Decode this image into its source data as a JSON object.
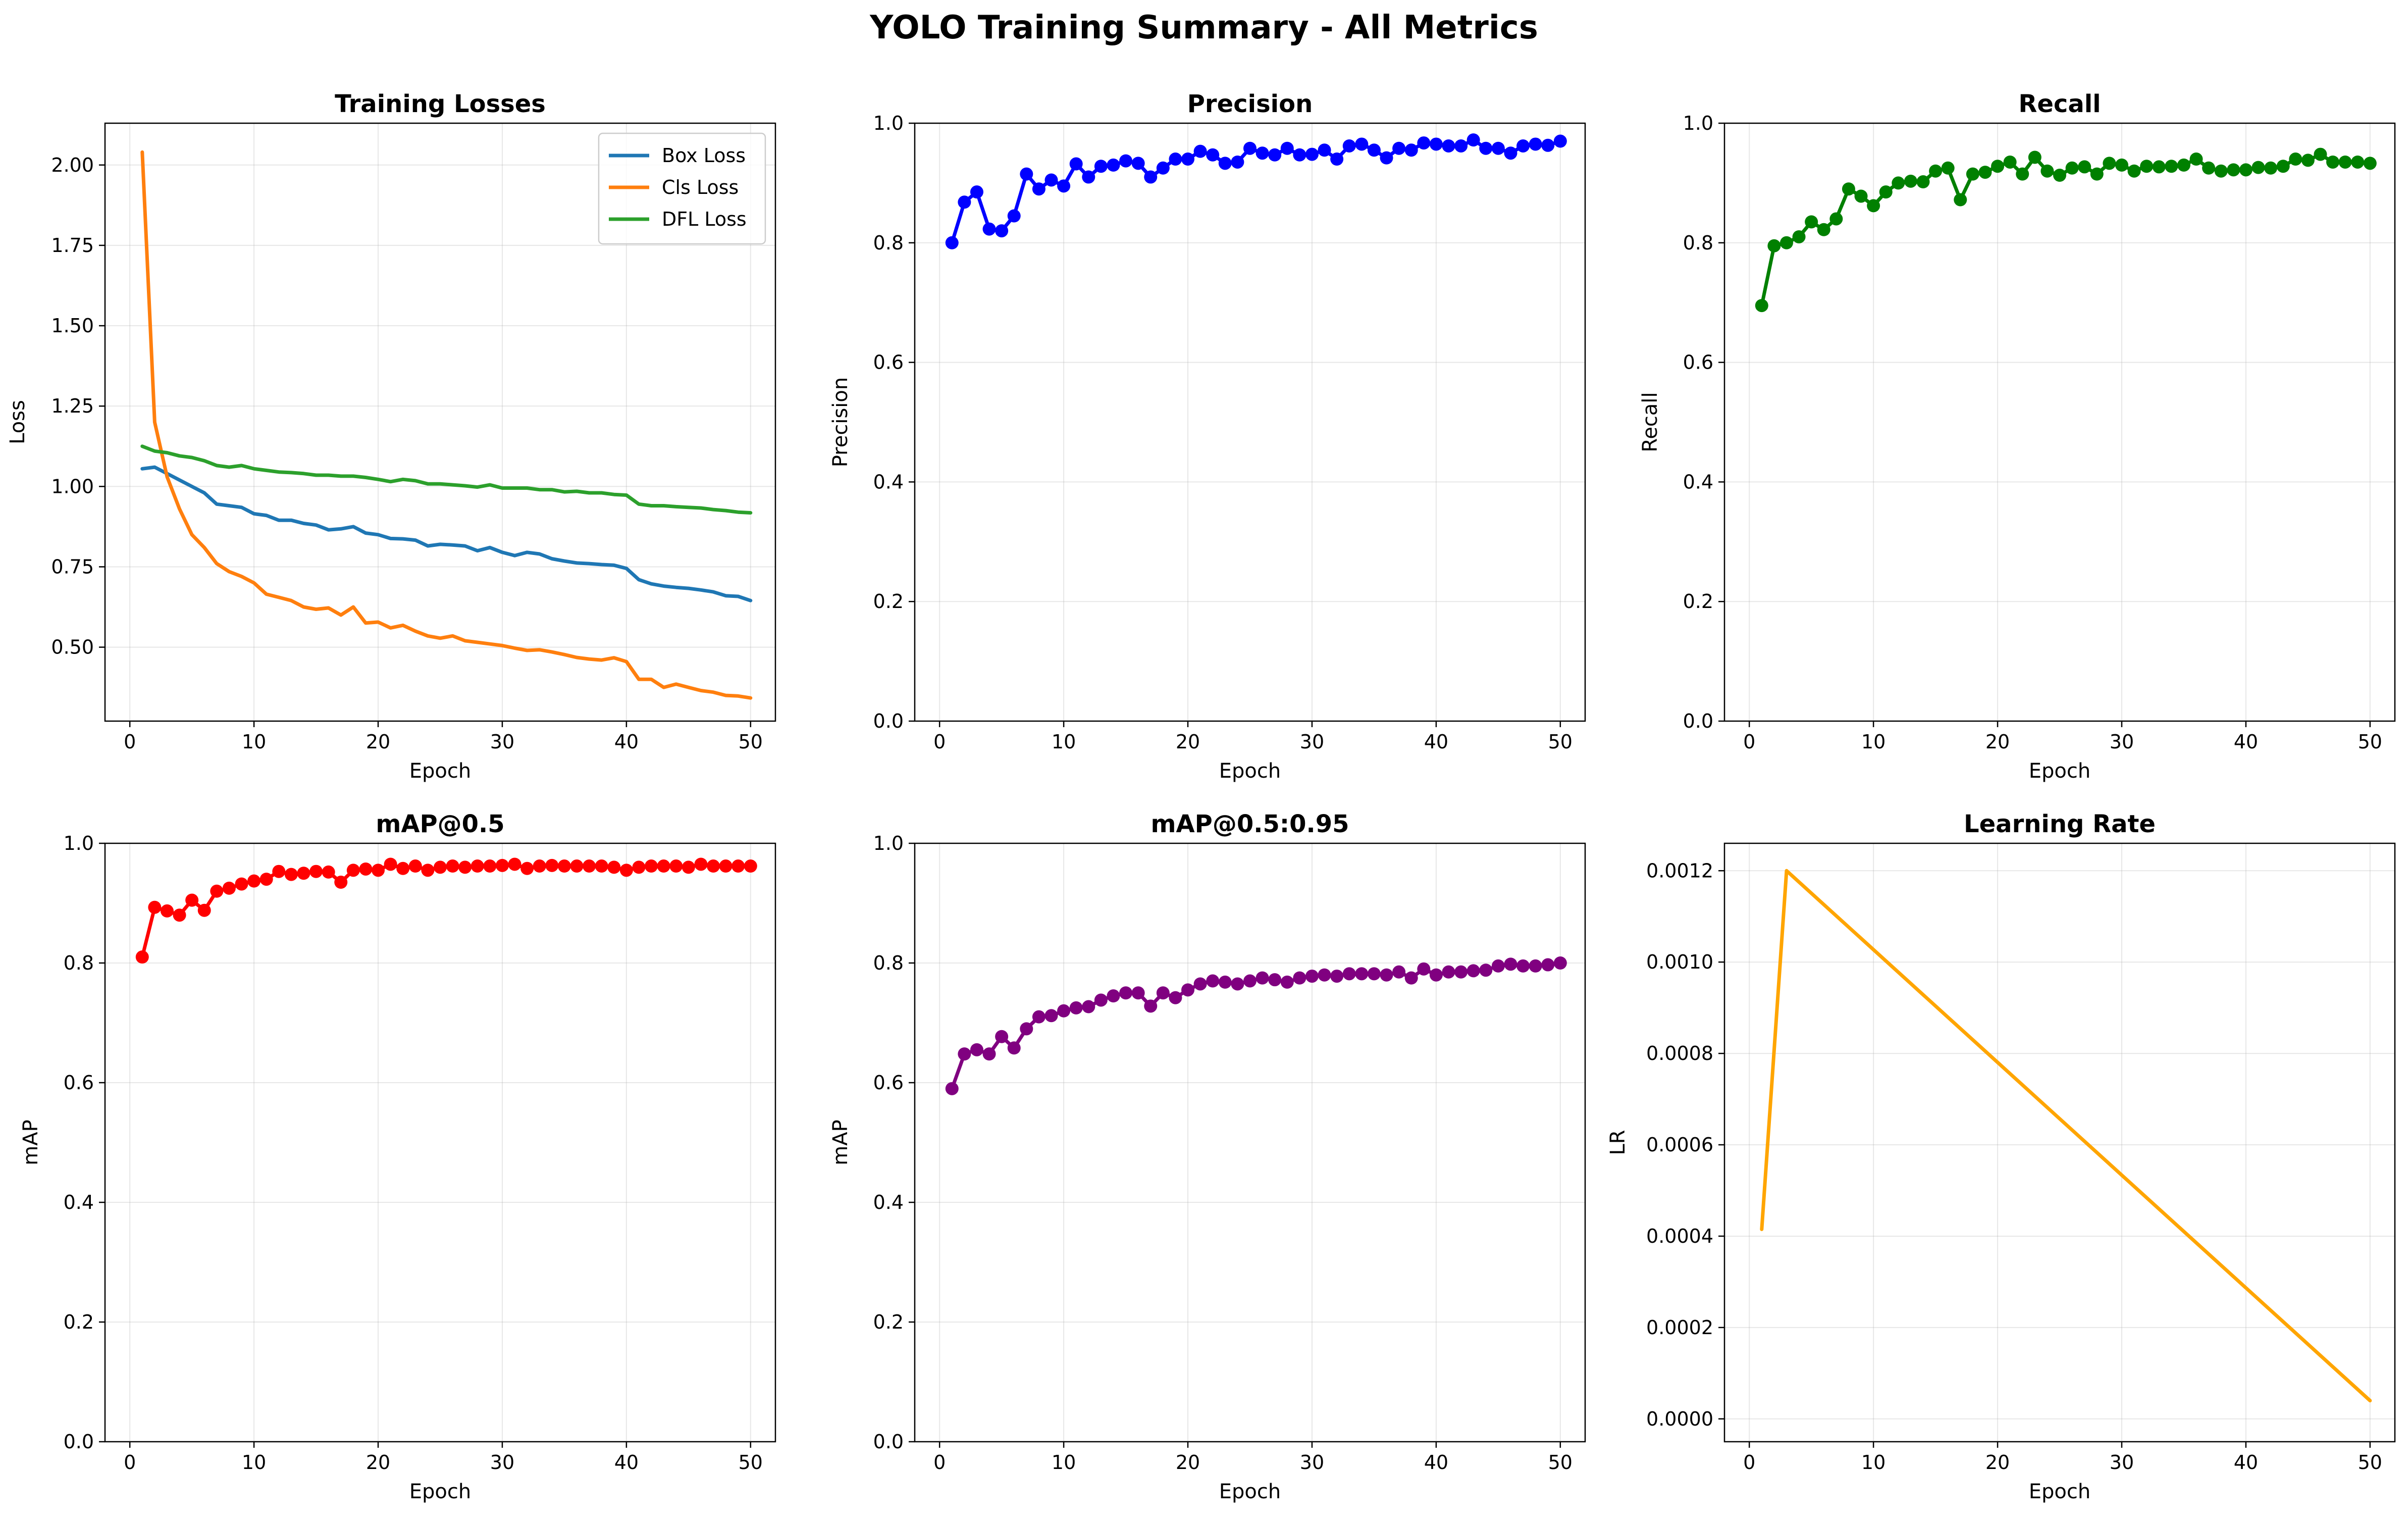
{
  "figure_title": "YOLO Training Summary - All Metrics",
  "chart_data": [
    {
      "type": "line",
      "title": "Training Losses",
      "xlabel": "Epoch",
      "ylabel": "Loss",
      "xlim": [
        -2,
        52
      ],
      "ylim": [
        0.27,
        2.13
      ],
      "xticks": [
        0,
        10,
        20,
        30,
        40,
        50
      ],
      "yticks": [
        0.5,
        0.75,
        1.0,
        1.25,
        1.5,
        1.75,
        2.0
      ],
      "ytick_labels": [
        "0.50",
        "0.75",
        "1.00",
        "1.25",
        "1.50",
        "1.75",
        "2.00"
      ],
      "grid": true,
      "legend": "top-right",
      "x": [
        1,
        2,
        3,
        4,
        5,
        6,
        7,
        8,
        9,
        10,
        11,
        12,
        13,
        14,
        15,
        16,
        17,
        18,
        19,
        20,
        21,
        22,
        23,
        24,
        25,
        26,
        27,
        28,
        29,
        30,
        31,
        32,
        33,
        34,
        35,
        36,
        37,
        38,
        39,
        40,
        41,
        42,
        43,
        44,
        45,
        46,
        47,
        48,
        49,
        50
      ],
      "series": [
        {
          "name": "Box Loss",
          "color": "#1f77b4",
          "markers": false,
          "values": [
            1.055,
            1.06,
            1.04,
            1.02,
            1.0,
            0.98,
            0.945,
            0.94,
            0.935,
            0.915,
            0.91,
            0.895,
            0.895,
            0.885,
            0.88,
            0.865,
            0.868,
            0.875,
            0.855,
            0.85,
            0.838,
            0.837,
            0.833,
            0.815,
            0.82,
            0.818,
            0.815,
            0.8,
            0.81,
            0.795,
            0.785,
            0.795,
            0.79,
            0.775,
            0.768,
            0.762,
            0.76,
            0.757,
            0.755,
            0.745,
            0.71,
            0.697,
            0.69,
            0.686,
            0.683,
            0.678,
            0.672,
            0.66,
            0.658,
            0.645
          ]
        },
        {
          "name": "Cls Loss",
          "color": "#ff7f0e",
          "markers": false,
          "values": [
            2.04,
            1.2,
            1.03,
            0.93,
            0.85,
            0.81,
            0.76,
            0.735,
            0.72,
            0.7,
            0.665,
            0.655,
            0.645,
            0.625,
            0.618,
            0.622,
            0.6,
            0.625,
            0.575,
            0.578,
            0.56,
            0.568,
            0.55,
            0.535,
            0.528,
            0.535,
            0.52,
            0.515,
            0.51,
            0.505,
            0.497,
            0.49,
            0.492,
            0.485,
            0.477,
            0.468,
            0.463,
            0.46,
            0.467,
            0.455,
            0.4,
            0.4,
            0.375,
            0.385,
            0.375,
            0.365,
            0.36,
            0.35,
            0.348,
            0.342
          ]
        },
        {
          "name": "DFL Loss",
          "color": "#2ca02c",
          "markers": false,
          "values": [
            1.125,
            1.11,
            1.105,
            1.095,
            1.09,
            1.08,
            1.065,
            1.06,
            1.065,
            1.055,
            1.05,
            1.045,
            1.043,
            1.04,
            1.035,
            1.035,
            1.032,
            1.032,
            1.028,
            1.022,
            1.015,
            1.022,
            1.018,
            1.008,
            1.008,
            1.005,
            1.002,
            0.998,
            1.005,
            0.995,
            0.995,
            0.995,
            0.99,
            0.99,
            0.983,
            0.985,
            0.98,
            0.98,
            0.975,
            0.973,
            0.945,
            0.94,
            0.94,
            0.937,
            0.935,
            0.933,
            0.928,
            0.925,
            0.92,
            0.918
          ]
        }
      ]
    },
    {
      "type": "line",
      "title": "Precision",
      "xlabel": "Epoch",
      "ylabel": "Precision",
      "xlim": [
        -2,
        52
      ],
      "ylim": [
        0,
        1
      ],
      "xticks": [
        0,
        10,
        20,
        30,
        40,
        50
      ],
      "yticks": [
        0,
        0.2,
        0.4,
        0.6,
        0.8,
        1.0
      ],
      "ytick_labels": [
        "0.0",
        "0.2",
        "0.4",
        "0.6",
        "0.8",
        "1.0"
      ],
      "grid": true,
      "x": [
        1,
        2,
        3,
        4,
        5,
        6,
        7,
        8,
        9,
        10,
        11,
        12,
        13,
        14,
        15,
        16,
        17,
        18,
        19,
        20,
        21,
        22,
        23,
        24,
        25,
        26,
        27,
        28,
        29,
        30,
        31,
        32,
        33,
        34,
        35,
        36,
        37,
        38,
        39,
        40,
        41,
        42,
        43,
        44,
        45,
        46,
        47,
        48,
        49,
        50
      ],
      "series": [
        {
          "color": "#0000ff",
          "markers": true,
          "values": [
            0.8,
            0.868,
            0.885,
            0.823,
            0.82,
            0.845,
            0.915,
            0.89,
            0.905,
            0.895,
            0.932,
            0.91,
            0.928,
            0.93,
            0.937,
            0.933,
            0.91,
            0.925,
            0.94,
            0.94,
            0.953,
            0.947,
            0.933,
            0.935,
            0.958,
            0.95,
            0.947,
            0.958,
            0.947,
            0.948,
            0.955,
            0.94,
            0.962,
            0.965,
            0.955,
            0.942,
            0.958,
            0.955,
            0.967,
            0.965,
            0.962,
            0.962,
            0.972,
            0.958,
            0.958,
            0.95,
            0.962,
            0.965,
            0.963,
            0.97
          ]
        }
      ]
    },
    {
      "type": "line",
      "title": "Recall",
      "xlabel": "Epoch",
      "ylabel": "Recall",
      "xlim": [
        -2,
        52
      ],
      "ylim": [
        0,
        1
      ],
      "xticks": [
        0,
        10,
        20,
        30,
        40,
        50
      ],
      "yticks": [
        0,
        0.2,
        0.4,
        0.6,
        0.8,
        1.0
      ],
      "ytick_labels": [
        "0.0",
        "0.2",
        "0.4",
        "0.6",
        "0.8",
        "1.0"
      ],
      "grid": true,
      "x": [
        1,
        2,
        3,
        4,
        5,
        6,
        7,
        8,
        9,
        10,
        11,
        12,
        13,
        14,
        15,
        16,
        17,
        18,
        19,
        20,
        21,
        22,
        23,
        24,
        25,
        26,
        27,
        28,
        29,
        30,
        31,
        32,
        33,
        34,
        35,
        36,
        37,
        38,
        39,
        40,
        41,
        42,
        43,
        44,
        45,
        46,
        47,
        48,
        49,
        50
      ],
      "series": [
        {
          "color": "#008000",
          "markers": true,
          "values": [
            0.695,
            0.795,
            0.8,
            0.81,
            0.835,
            0.822,
            0.84,
            0.89,
            0.878,
            0.862,
            0.885,
            0.9,
            0.903,
            0.902,
            0.92,
            0.925,
            0.872,
            0.915,
            0.918,
            0.928,
            0.935,
            0.915,
            0.943,
            0.92,
            0.913,
            0.925,
            0.927,
            0.915,
            0.933,
            0.93,
            0.92,
            0.928,
            0.927,
            0.928,
            0.93,
            0.94,
            0.925,
            0.92,
            0.922,
            0.922,
            0.926,
            0.925,
            0.928,
            0.94,
            0.938,
            0.948,
            0.935,
            0.935,
            0.935,
            0.933
          ]
        }
      ]
    },
    {
      "type": "line",
      "title": "mAP@0.5",
      "xlabel": "Epoch",
      "ylabel": "mAP",
      "xlim": [
        -2,
        52
      ],
      "ylim": [
        0,
        1
      ],
      "xticks": [
        0,
        10,
        20,
        30,
        40,
        50
      ],
      "yticks": [
        0,
        0.2,
        0.4,
        0.6,
        0.8,
        1.0
      ],
      "ytick_labels": [
        "0.0",
        "0.2",
        "0.4",
        "0.6",
        "0.8",
        "1.0"
      ],
      "grid": true,
      "x": [
        1,
        2,
        3,
        4,
        5,
        6,
        7,
        8,
        9,
        10,
        11,
        12,
        13,
        14,
        15,
        16,
        17,
        18,
        19,
        20,
        21,
        22,
        23,
        24,
        25,
        26,
        27,
        28,
        29,
        30,
        31,
        32,
        33,
        34,
        35,
        36,
        37,
        38,
        39,
        40,
        41,
        42,
        43,
        44,
        45,
        46,
        47,
        48,
        49,
        50
      ],
      "series": [
        {
          "color": "#ff0000",
          "markers": true,
          "values": [
            0.81,
            0.893,
            0.887,
            0.88,
            0.905,
            0.888,
            0.92,
            0.925,
            0.932,
            0.937,
            0.94,
            0.953,
            0.948,
            0.95,
            0.953,
            0.952,
            0.935,
            0.955,
            0.957,
            0.955,
            0.965,
            0.958,
            0.962,
            0.955,
            0.96,
            0.962,
            0.96,
            0.962,
            0.962,
            0.963,
            0.965,
            0.958,
            0.962,
            0.963,
            0.962,
            0.962,
            0.962,
            0.962,
            0.96,
            0.955,
            0.96,
            0.962,
            0.962,
            0.962,
            0.96,
            0.965,
            0.962,
            0.962,
            0.962,
            0.962
          ]
        }
      ]
    },
    {
      "type": "line",
      "title": "mAP@0.5:0.95",
      "xlabel": "Epoch",
      "ylabel": "mAP",
      "xlim": [
        -2,
        52
      ],
      "ylim": [
        0,
        1
      ],
      "xticks": [
        0,
        10,
        20,
        30,
        40,
        50
      ],
      "yticks": [
        0,
        0.2,
        0.4,
        0.6,
        0.8,
        1.0
      ],
      "ytick_labels": [
        "0.0",
        "0.2",
        "0.4",
        "0.6",
        "0.8",
        "1.0"
      ],
      "grid": true,
      "x": [
        1,
        2,
        3,
        4,
        5,
        6,
        7,
        8,
        9,
        10,
        11,
        12,
        13,
        14,
        15,
        16,
        17,
        18,
        19,
        20,
        21,
        22,
        23,
        24,
        25,
        26,
        27,
        28,
        29,
        30,
        31,
        32,
        33,
        34,
        35,
        36,
        37,
        38,
        39,
        40,
        41,
        42,
        43,
        44,
        45,
        46,
        47,
        48,
        49,
        50
      ],
      "series": [
        {
          "color": "#800080",
          "markers": true,
          "values": [
            0.59,
            0.648,
            0.655,
            0.648,
            0.677,
            0.658,
            0.69,
            0.71,
            0.712,
            0.72,
            0.725,
            0.727,
            0.738,
            0.745,
            0.75,
            0.75,
            0.728,
            0.75,
            0.742,
            0.755,
            0.765,
            0.77,
            0.768,
            0.765,
            0.77,
            0.775,
            0.772,
            0.768,
            0.775,
            0.778,
            0.78,
            0.778,
            0.782,
            0.782,
            0.782,
            0.78,
            0.785,
            0.775,
            0.79,
            0.78,
            0.785,
            0.785,
            0.787,
            0.788,
            0.795,
            0.798,
            0.795,
            0.795,
            0.797,
            0.8
          ]
        }
      ]
    },
    {
      "type": "line",
      "title": "Learning Rate",
      "xlabel": "Epoch",
      "ylabel": "LR",
      "xlim": [
        -2,
        52
      ],
      "ylim": [
        -5e-05,
        0.00126
      ],
      "xticks": [
        0,
        10,
        20,
        30,
        40,
        50
      ],
      "yticks": [
        0,
        0.0002,
        0.0004,
        0.0006,
        0.0008,
        0.001,
        0.0012
      ],
      "ytick_labels": [
        "0.0000",
        "0.0002",
        "0.0004",
        "0.0006",
        "0.0008",
        "0.0010",
        "0.0012"
      ],
      "grid": true,
      "x": [
        1,
        3,
        50
      ],
      "series": [
        {
          "color": "#ffa500",
          "markers": false,
          "values": [
            0.000415,
            0.0012,
            4e-05
          ]
        }
      ]
    }
  ]
}
